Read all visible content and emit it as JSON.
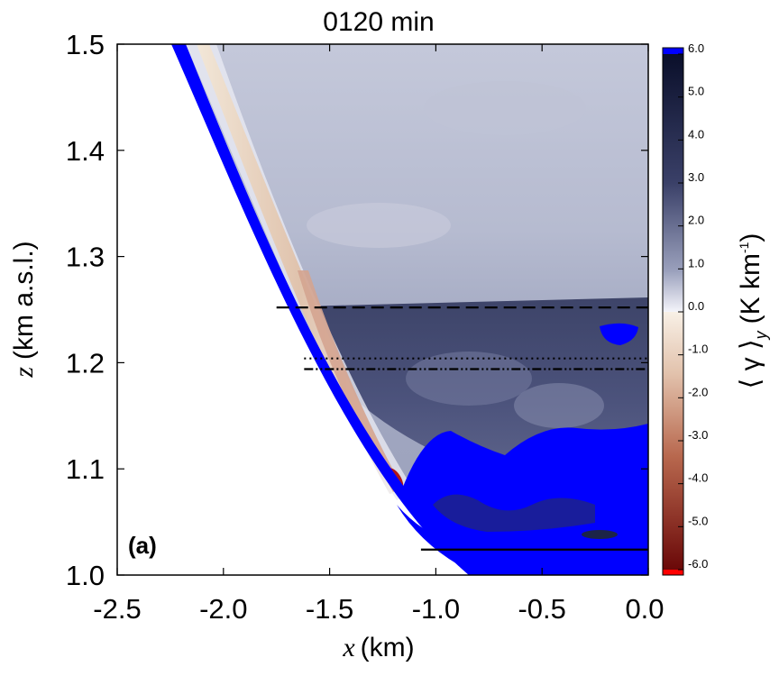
{
  "chart_data": {
    "type": "heatmap",
    "title": "0120 min",
    "xlabel_var": "x",
    "xlabel_unit": "(km)",
    "ylabel_var": "z",
    "ylabel_unit": "(km a.s.l.)",
    "xlim": [
      -2.5,
      0.0
    ],
    "ylim": [
      1.0,
      1.5
    ],
    "x_ticks": [
      "-2.5",
      "-2.0",
      "-1.5",
      "-1.0",
      "-0.5",
      "0.0"
    ],
    "y_ticks": [
      "1.0",
      "1.1",
      "1.2",
      "1.3",
      "1.4",
      "1.5"
    ],
    "panel_label": "(a)",
    "colorbar": {
      "label_main": "⟨ γ ⟩",
      "label_sub": "y",
      "label_unit": "(K km",
      "label_exp": "-1",
      "label_close": ")",
      "range": [
        -6.0,
        6.0
      ],
      "ticks": [
        "6.0",
        "5.0",
        "4.0",
        "3.0",
        "2.0",
        "1.0",
        "0.0",
        "-1.0",
        "-2.0",
        "-3.0",
        "-4.0",
        "-5.0",
        "-6.0"
      ],
      "over_color": "#0000ff",
      "under_color": "#ff0000"
    },
    "horizontal_lines": [
      {
        "style": "dashed",
        "z": 1.252,
        "x_start": -1.75,
        "x_end": 0.0
      },
      {
        "style": "dotted",
        "z": 1.204,
        "x_start": -1.62,
        "x_end": 0.0
      },
      {
        "style": "dash-dot-dot",
        "z": 1.194,
        "x_start": -1.62,
        "x_end": 0.0
      },
      {
        "style": "solid",
        "z": 1.024,
        "x_start": -1.07,
        "x_end": 0.0
      }
    ],
    "terrain_color": "#0000ff",
    "colors": {
      "positive_light": "#eef0f6",
      "positive_mid": "#aab0c8",
      "positive_dark": "#1c2448",
      "negative_mid": "#d9a48f",
      "negative_dark": "#a01010"
    }
  }
}
